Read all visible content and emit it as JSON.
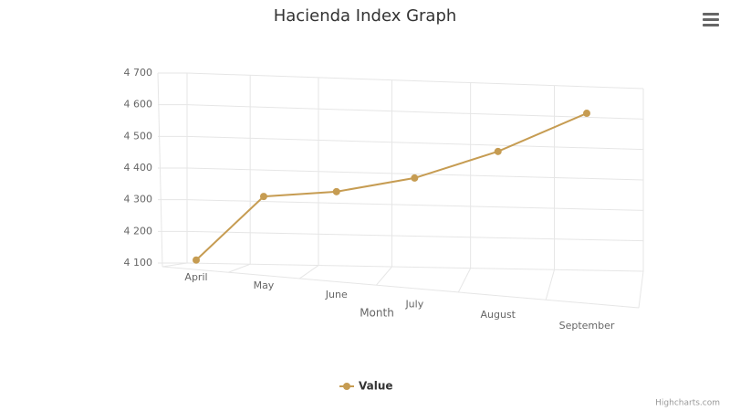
{
  "chart_data": {
    "type": "line",
    "title": "Hacienda Index Graph",
    "categories": [
      "April",
      "May",
      "June",
      "July",
      "August",
      "September"
    ],
    "x_label": "Month",
    "series": [
      {
        "name": "Value",
        "color": "#c69c52",
        "values": [
          4110,
          4316,
          4337,
          4387,
          4480,
          4613
        ]
      }
    ],
    "ylim": [
      4100,
      4700
    ],
    "yticks": [
      {
        "value": 4100,
        "label": "4 100"
      },
      {
        "value": 4200,
        "label": "4 200"
      },
      {
        "value": 4300,
        "label": "4 300"
      },
      {
        "value": 4400,
        "label": "4 400"
      },
      {
        "value": 4500,
        "label": "4 500"
      },
      {
        "value": 4600,
        "label": "4 600"
      },
      {
        "value": 4700,
        "label": "4 700"
      }
    ],
    "grid": true,
    "legend": "bottom",
    "credits": "Highcharts.com"
  }
}
